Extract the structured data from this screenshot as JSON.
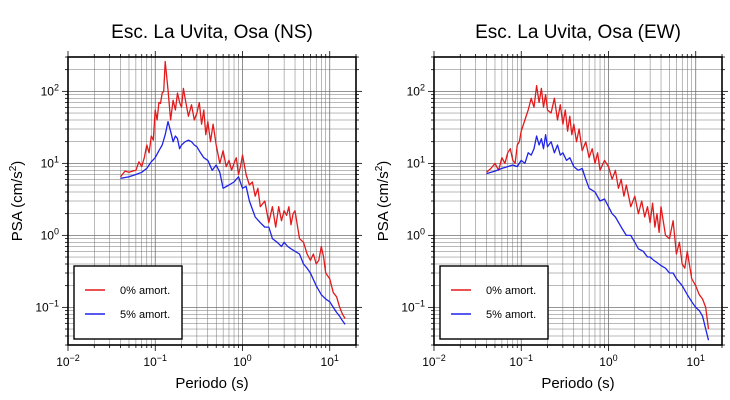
{
  "chart_data": [
    {
      "type": "line",
      "title": "Esc. La Uvita, Osa (NS)",
      "xlabel": "Periodo (s)",
      "ylabel_main": "PSA (cm/s",
      "ylabel_sup": "2",
      "ylabel_close": ")",
      "x_scale": "log",
      "y_scale": "log",
      "xlim": [
        0.01,
        20
      ],
      "ylim": [
        0.03,
        300
      ],
      "grid": true,
      "legend_position": "bottom-left",
      "x_ticks": [
        {
          "base": "10",
          "exp": "−2",
          "value": 0.01
        },
        {
          "base": "10",
          "exp": "−1",
          "value": 0.1
        },
        {
          "base": "10",
          "exp": "0",
          "value": 1
        },
        {
          "base": "10",
          "exp": "1",
          "value": 10
        }
      ],
      "y_ticks": [
        {
          "base": "10",
          "exp": "−1",
          "value": 0.1
        },
        {
          "base": "10",
          "exp": "0",
          "value": 1
        },
        {
          "base": "10",
          "exp": "1",
          "value": 10
        },
        {
          "base": "10",
          "exp": "2",
          "value": 100
        }
      ],
      "series": [
        {
          "name": "0% amort.",
          "color": "#e31a1c",
          "x": [
            0.04,
            0.045,
            0.05,
            0.055,
            0.06,
            0.065,
            0.07,
            0.075,
            0.08,
            0.085,
            0.09,
            0.095,
            0.1,
            0.105,
            0.11,
            0.115,
            0.12,
            0.125,
            0.13,
            0.14,
            0.15,
            0.16,
            0.17,
            0.18,
            0.19,
            0.2,
            0.21,
            0.22,
            0.24,
            0.26,
            0.28,
            0.3,
            0.32,
            0.34,
            0.36,
            0.38,
            0.4,
            0.43,
            0.46,
            0.5,
            0.55,
            0.6,
            0.65,
            0.7,
            0.75,
            0.8,
            0.85,
            0.9,
            0.95,
            1.0,
            1.1,
            1.2,
            1.3,
            1.4,
            1.5,
            1.6,
            1.8,
            2.0,
            2.2,
            2.4,
            2.6,
            2.8,
            3.0,
            3.2,
            3.4,
            3.6,
            3.8,
            4.0,
            4.5,
            5.0,
            5.5,
            6.0,
            6.5,
            7.0,
            7.5,
            8.0,
            8.5,
            9.0,
            10,
            11,
            12,
            13,
            14,
            15
          ],
          "y": [
            6.5,
            7.8,
            7.5,
            7.8,
            8.0,
            10.5,
            9.0,
            12.0,
            18.0,
            14.0,
            24.0,
            21.0,
            55.0,
            40.0,
            70.0,
            68.0,
            95.0,
            100.0,
            260.0,
            105.0,
            40.0,
            75.0,
            55.0,
            95.0,
            70.0,
            60.0,
            110.0,
            80.0,
            45.0,
            65.0,
            40.0,
            50.0,
            70.0,
            35.0,
            55.0,
            25.0,
            38.0,
            20.0,
            35.0,
            18.0,
            10.0,
            15.0,
            9.0,
            11.0,
            8.0,
            10.0,
            12.0,
            7.0,
            9.0,
            13.0,
            7.0,
            5.0,
            5.5,
            3.5,
            4.5,
            2.5,
            3.0,
            1.5,
            2.5,
            1.3,
            2.5,
            1.6,
            2.2,
            1.9,
            2.5,
            1.4,
            2.0,
            2.2,
            0.9,
            0.8,
            0.55,
            0.45,
            0.55,
            0.4,
            0.45,
            0.7,
            0.5,
            0.3,
            0.25,
            0.16,
            0.14,
            0.1,
            0.08,
            0.07
          ]
        },
        {
          "name": "5% amort.",
          "color": "#1f23e8",
          "x": [
            0.04,
            0.05,
            0.06,
            0.07,
            0.08,
            0.09,
            0.1,
            0.11,
            0.12,
            0.13,
            0.14,
            0.15,
            0.16,
            0.17,
            0.18,
            0.19,
            0.2,
            0.22,
            0.24,
            0.26,
            0.28,
            0.3,
            0.33,
            0.36,
            0.4,
            0.45,
            0.5,
            0.55,
            0.6,
            0.7,
            0.8,
            0.9,
            1.0,
            1.1,
            1.2,
            1.4,
            1.6,
            1.8,
            2.0,
            2.2,
            2.5,
            2.8,
            3.0,
            3.3,
            3.6,
            4.0,
            4.5,
            5.0,
            5.5,
            6.0,
            7.0,
            8.0,
            9.0,
            10,
            11,
            12,
            13,
            14,
            15
          ],
          "y": [
            6.2,
            6.5,
            7.0,
            7.5,
            8.5,
            10.5,
            12.0,
            15.0,
            18.0,
            25.0,
            38.0,
            28.0,
            20.0,
            24.0,
            22.0,
            16.0,
            18.0,
            20.0,
            21.0,
            20.0,
            18.0,
            17.0,
            14.0,
            12.0,
            11.0,
            8.0,
            9.5,
            7.5,
            4.5,
            5.0,
            5.5,
            6.5,
            4.5,
            4.8,
            3.0,
            1.8,
            1.5,
            1.3,
            1.3,
            0.9,
            0.8,
            0.7,
            0.8,
            0.7,
            0.65,
            0.6,
            0.55,
            0.4,
            0.35,
            0.3,
            0.2,
            0.15,
            0.13,
            0.12,
            0.1,
            0.085,
            0.075,
            0.065,
            0.058
          ]
        }
      ]
    },
    {
      "type": "line",
      "title": "Esc. La Uvita, Osa (EW)",
      "xlabel": "Periodo (s)",
      "ylabel_main": "PSA (cm/s",
      "ylabel_sup": "2",
      "ylabel_close": ")",
      "x_scale": "log",
      "y_scale": "log",
      "xlim": [
        0.01,
        20
      ],
      "ylim": [
        0.03,
        300
      ],
      "grid": true,
      "legend_position": "bottom-left",
      "x_ticks": [
        {
          "base": "10",
          "exp": "−2",
          "value": 0.01
        },
        {
          "base": "10",
          "exp": "−1",
          "value": 0.1
        },
        {
          "base": "10",
          "exp": "0",
          "value": 1
        },
        {
          "base": "10",
          "exp": "1",
          "value": 10
        }
      ],
      "y_ticks": [
        {
          "base": "10",
          "exp": "−1",
          "value": 0.1
        },
        {
          "base": "10",
          "exp": "0",
          "value": 1
        },
        {
          "base": "10",
          "exp": "1",
          "value": 10
        },
        {
          "base": "10",
          "exp": "2",
          "value": 100
        }
      ],
      "series": [
        {
          "name": "0% amort.",
          "color": "#e31a1c",
          "x": [
            0.04,
            0.045,
            0.05,
            0.055,
            0.06,
            0.065,
            0.07,
            0.075,
            0.08,
            0.085,
            0.09,
            0.095,
            0.1,
            0.11,
            0.12,
            0.13,
            0.14,
            0.15,
            0.16,
            0.17,
            0.18,
            0.19,
            0.2,
            0.22,
            0.24,
            0.26,
            0.28,
            0.3,
            0.32,
            0.34,
            0.36,
            0.38,
            0.4,
            0.43,
            0.46,
            0.5,
            0.55,
            0.6,
            0.65,
            0.7,
            0.75,
            0.8,
            0.9,
            1.0,
            1.1,
            1.2,
            1.3,
            1.4,
            1.5,
            1.6,
            1.8,
            2.0,
            2.2,
            2.4,
            2.6,
            2.8,
            3.0,
            3.2,
            3.4,
            3.6,
            3.8,
            4.0,
            4.5,
            5.0,
            5.5,
            6.0,
            6.5,
            7.0,
            7.5,
            8.0,
            9.0,
            10,
            11,
            12,
            13,
            14
          ],
          "y": [
            7.5,
            8.5,
            10.0,
            8.0,
            12.0,
            10.0,
            14.0,
            16.0,
            11.0,
            10.0,
            18.0,
            20.0,
            28.0,
            40.0,
            55.0,
            80.0,
            60.0,
            120.0,
            70.0,
            110.0,
            60.0,
            90.0,
            55.0,
            50.0,
            80.0,
            40.0,
            65.0,
            35.0,
            55.0,
            28.0,
            45.0,
            25.0,
            35.0,
            20.0,
            30.0,
            15.0,
            20.0,
            12.0,
            16.0,
            10.0,
            14.0,
            8.0,
            11.0,
            9.0,
            6.0,
            8.0,
            4.5,
            6.0,
            3.5,
            5.0,
            2.5,
            3.5,
            2.0,
            3.0,
            1.8,
            2.5,
            1.5,
            2.8,
            1.3,
            2.0,
            1.1,
            2.5,
            1.0,
            0.9,
            1.6,
            0.55,
            0.8,
            0.4,
            0.35,
            0.6,
            0.25,
            0.2,
            0.15,
            0.13,
            0.1,
            0.05
          ]
        },
        {
          "name": "5% amort.",
          "color": "#1f23e8",
          "x": [
            0.04,
            0.05,
            0.06,
            0.07,
            0.08,
            0.09,
            0.1,
            0.11,
            0.12,
            0.13,
            0.14,
            0.15,
            0.16,
            0.17,
            0.18,
            0.19,
            0.2,
            0.22,
            0.24,
            0.26,
            0.28,
            0.3,
            0.33,
            0.36,
            0.4,
            0.45,
            0.5,
            0.55,
            0.6,
            0.7,
            0.8,
            0.9,
            1.0,
            1.1,
            1.2,
            1.4,
            1.6,
            1.8,
            2.0,
            2.2,
            2.5,
            2.8,
            3.0,
            3.3,
            3.6,
            4.0,
            4.5,
            5.0,
            5.5,
            6.0,
            7.0,
            8.0,
            9.0,
            10,
            11,
            12,
            13,
            14
          ],
          "y": [
            7.2,
            7.8,
            8.5,
            9.0,
            9.5,
            9.0,
            11.0,
            10.0,
            14.0,
            13.0,
            16.0,
            24.0,
            18.0,
            22.0,
            16.0,
            25.0,
            17.0,
            20.0,
            14.0,
            18.0,
            13.0,
            14.0,
            11.0,
            12.0,
            9.0,
            8.0,
            8.5,
            6.0,
            4.5,
            4.0,
            3.0,
            3.2,
            2.5,
            2.0,
            1.8,
            1.3,
            1.0,
            1.0,
            0.8,
            0.65,
            0.6,
            0.5,
            0.5,
            0.45,
            0.42,
            0.38,
            0.35,
            0.3,
            0.3,
            0.25,
            0.2,
            0.15,
            0.12,
            0.1,
            0.09,
            0.075,
            0.05,
            0.035
          ]
        }
      ]
    }
  ]
}
